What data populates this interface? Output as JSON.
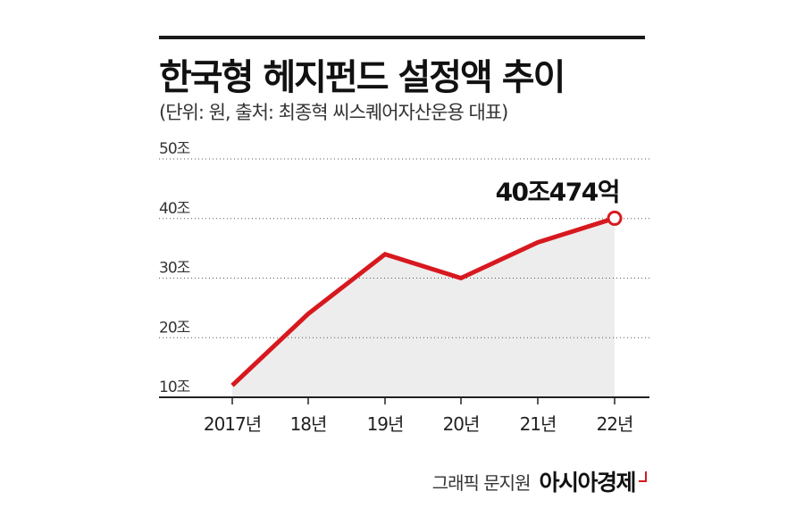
{
  "header": {
    "title": "한국형 헤지펀드 설정액 추이",
    "subtitle": "(단위: 원, 출처: 최종혁 씨스퀘어자산운용 대표)"
  },
  "chart_data": {
    "type": "area",
    "x": [
      "2017년",
      "18년",
      "19년",
      "20년",
      "21년",
      "22년"
    ],
    "y_ticks": [
      "50조",
      "40조",
      "30조",
      "20조",
      "10조"
    ],
    "y_tick_values": [
      50,
      40,
      30,
      20,
      10
    ],
    "ylim": [
      10,
      50
    ],
    "series": [
      {
        "values": [
          12,
          24,
          34,
          30,
          36,
          40.0474
        ]
      }
    ],
    "grid": "dotted horizontal",
    "annotation": {
      "text": "40조474억",
      "index": 5
    },
    "colors": {
      "line": "#d7191f",
      "fill": "#ededed",
      "grid": "#555555"
    }
  },
  "footer": {
    "author": "그래픽 문지원",
    "brand": "아시아경제"
  }
}
